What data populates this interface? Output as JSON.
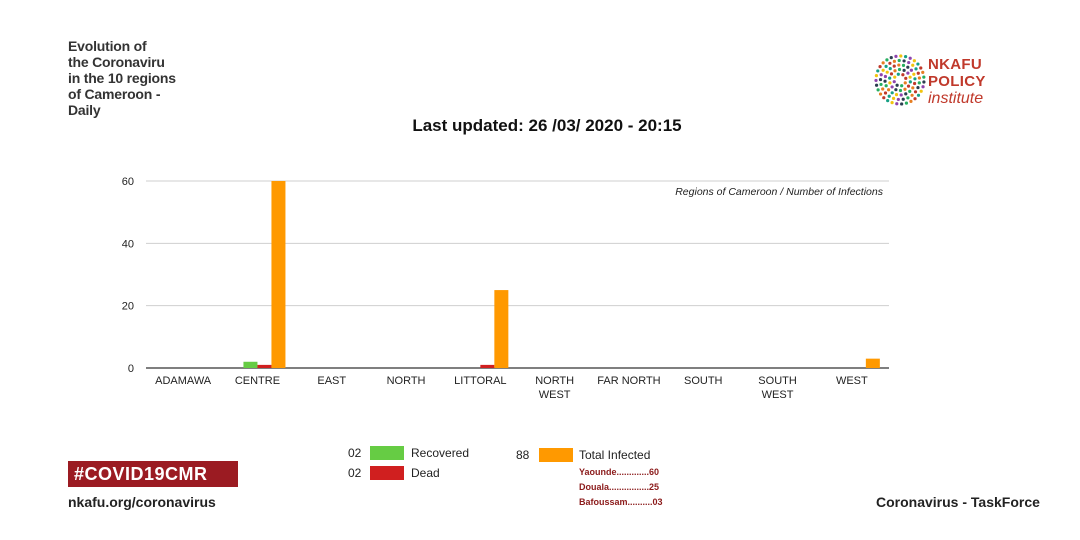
{
  "header": {
    "side_title": "Evolution of\nthe Coronaviru\n in the 10 regions\nof Cameroon -\nDaily",
    "last_updated": "Last updated: 26 /03/ 2020 - 20:15"
  },
  "logo": {
    "line1": "NKAFU",
    "line2": "POLICY",
    "line3": "institute",
    "icon": "dotted-circle-logo-icon"
  },
  "chart_data": {
    "type": "bar",
    "annotation": "Regions of Cameroon / Number of Infections",
    "categories": [
      "ADAMAWA",
      "CENTRE",
      "EAST",
      "NORTH",
      "LITTORAL",
      "NORTH WEST",
      "FAR NORTH",
      "SOUTH",
      "SOUTH WEST",
      "WEST"
    ],
    "category_lines": [
      [
        "ADAMAWA"
      ],
      [
        "CENTRE"
      ],
      [
        "EAST"
      ],
      [
        "NORTH"
      ],
      [
        "LITTORAL"
      ],
      [
        "NORTH",
        "WEST"
      ],
      [
        "FAR NORTH"
      ],
      [
        "SOUTH"
      ],
      [
        "SOUTH",
        "WEST"
      ],
      [
        "WEST"
      ]
    ],
    "series": [
      {
        "name": "Recovered",
        "color": "#66cc44",
        "values": [
          0,
          2,
          0,
          0,
          0,
          0,
          0,
          0,
          0,
          0
        ]
      },
      {
        "name": "Dead",
        "color": "#d01f1f",
        "values": [
          0,
          1,
          0,
          0,
          1,
          0,
          0,
          0,
          0,
          0
        ]
      },
      {
        "name": "Total Infected",
        "color": "#ff9900",
        "values": [
          0,
          60,
          0,
          0,
          25,
          0,
          0,
          0,
          0,
          3
        ]
      }
    ],
    "ylim": [
      0,
      60
    ],
    "yticks": [
      0,
      20,
      40,
      60
    ],
    "grid": true
  },
  "legend": {
    "recovered_count": "02",
    "recovered_label": "Recovered",
    "dead_count": "02",
    "dead_label": "Dead",
    "infected_count": "88",
    "infected_label": "Total Infected",
    "breakdown": [
      "Yaounde.............60",
      "Douala................25",
      "Bafoussam..........03"
    ]
  },
  "footer": {
    "hashtag": "#COVID19CMR",
    "url": "nkafu.org/coronavirus",
    "taskforce": "Coronavirus - TaskForce"
  },
  "colors": {
    "brand": "#9b1b22",
    "recovered": "#66cc44",
    "dead": "#d01f1f",
    "infected": "#ff9900"
  }
}
